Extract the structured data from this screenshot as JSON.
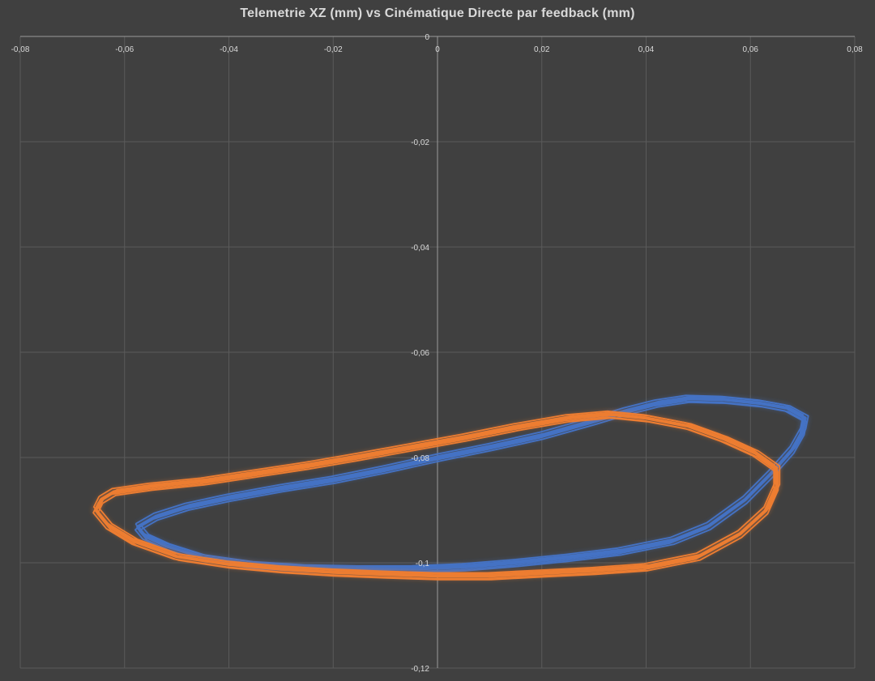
{
  "chart_data": {
    "type": "scatter",
    "title": "Telemetrie XZ  (mm) vs Cinématique Directe par feedback (mm)",
    "xlabel": "",
    "ylabel": "",
    "xlim": [
      -0.08,
      0.08
    ],
    "ylim": [
      -0.12,
      0
    ],
    "x_ticks": [
      "-0,08",
      "-0,06",
      "-0,04",
      "-0,02",
      "0",
      "0,02",
      "0,04",
      "0,06",
      "0,08"
    ],
    "y_ticks": [
      "0",
      "-0,02",
      "-0,04",
      "-0,06",
      "-0,08",
      "-0,1",
      "-0,12"
    ],
    "grid": true,
    "legend": "none",
    "series": [
      {
        "color": "#4472c4",
        "points": [
          [
            -0.0575,
            -0.0932
          ],
          [
            -0.054,
            -0.0912
          ],
          [
            -0.048,
            -0.0893
          ],
          [
            -0.04,
            -0.0876
          ],
          [
            -0.03,
            -0.0858
          ],
          [
            -0.02,
            -0.0842
          ],
          [
            -0.01,
            -0.0822
          ],
          [
            0.0,
            -0.08
          ],
          [
            0.01,
            -0.078
          ],
          [
            0.02,
            -0.0758
          ],
          [
            0.03,
            -0.073
          ],
          [
            0.036,
            -0.0712
          ],
          [
            0.042,
            -0.0697
          ],
          [
            0.048,
            -0.0688
          ],
          [
            0.055,
            -0.069
          ],
          [
            0.062,
            -0.0697
          ],
          [
            0.067,
            -0.0706
          ],
          [
            0.0705,
            -0.0725
          ],
          [
            0.07,
            -0.075
          ],
          [
            0.068,
            -0.0785
          ],
          [
            0.064,
            -0.083
          ],
          [
            0.059,
            -0.088
          ],
          [
            0.052,
            -0.093
          ],
          [
            0.045,
            -0.0958
          ],
          [
            0.035,
            -0.0978
          ],
          [
            0.025,
            -0.099
          ],
          [
            0.015,
            -0.1
          ],
          [
            0.005,
            -0.1008
          ],
          [
            -0.005,
            -0.1012
          ],
          [
            -0.015,
            -0.1012
          ],
          [
            -0.025,
            -0.101
          ],
          [
            -0.035,
            -0.1004
          ],
          [
            -0.045,
            -0.099
          ],
          [
            -0.052,
            -0.0968
          ],
          [
            -0.056,
            -0.095
          ],
          [
            -0.0575,
            -0.0932
          ]
        ]
      },
      {
        "color": "#ed7d31",
        "points": [
          [
            -0.0645,
            -0.088
          ],
          [
            -0.062,
            -0.0865
          ],
          [
            -0.055,
            -0.0855
          ],
          [
            -0.045,
            -0.0845
          ],
          [
            -0.035,
            -0.083
          ],
          [
            -0.025,
            -0.0815
          ],
          [
            -0.015,
            -0.0798
          ],
          [
            -0.005,
            -0.078
          ],
          [
            0.005,
            -0.0762
          ],
          [
            0.015,
            -0.0742
          ],
          [
            0.025,
            -0.0725
          ],
          [
            0.033,
            -0.0718
          ],
          [
            0.04,
            -0.0725
          ],
          [
            0.048,
            -0.074
          ],
          [
            0.055,
            -0.0765
          ],
          [
            0.061,
            -0.0792
          ],
          [
            0.065,
            -0.082
          ],
          [
            0.065,
            -0.0855
          ],
          [
            0.063,
            -0.09
          ],
          [
            0.058,
            -0.0945
          ],
          [
            0.05,
            -0.0988
          ],
          [
            0.04,
            -0.1008
          ],
          [
            0.03,
            -0.1015
          ],
          [
            0.02,
            -0.102
          ],
          [
            0.01,
            -0.1025
          ],
          [
            0.0,
            -0.1025
          ],
          [
            -0.01,
            -0.1022
          ],
          [
            -0.02,
            -0.1018
          ],
          [
            -0.03,
            -0.1012
          ],
          [
            -0.04,
            -0.1003
          ],
          [
            -0.05,
            -0.0988
          ],
          [
            -0.058,
            -0.096
          ],
          [
            -0.063,
            -0.093
          ],
          [
            -0.0655,
            -0.09
          ],
          [
            -0.0645,
            -0.088
          ]
        ]
      }
    ]
  }
}
